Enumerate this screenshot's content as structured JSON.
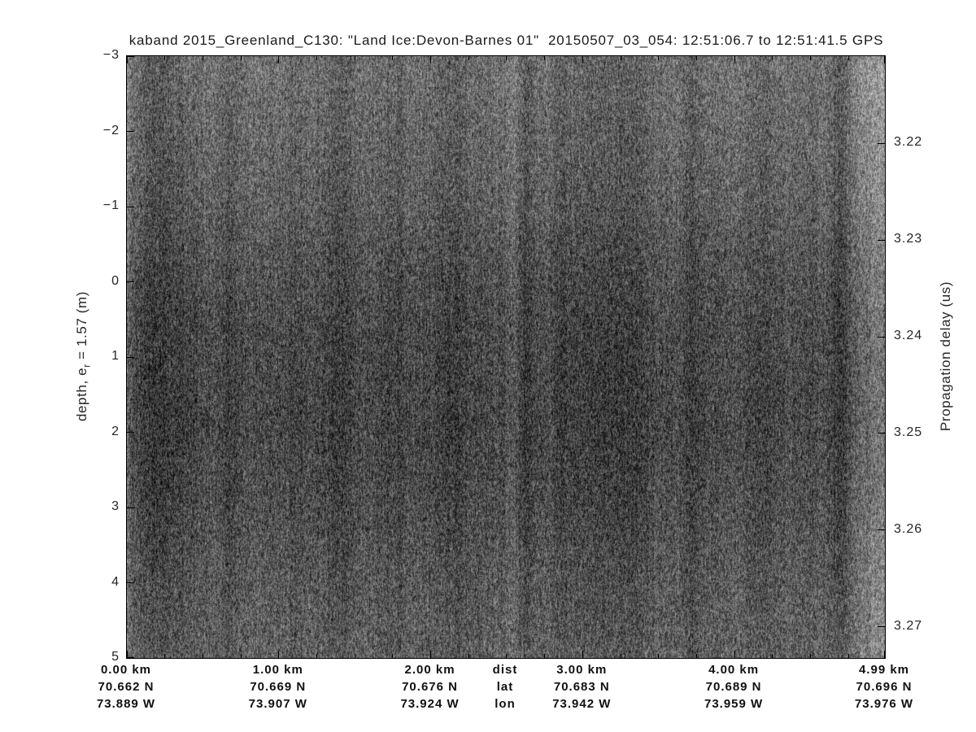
{
  "chart_data": {
    "type": "heatmap",
    "title": "kaband 2015_Greenland_C130: \"Land Ice:Devon-Barnes 01\"  20150507_03_054: 12:51:06.7 to 12:51:41.5 GPS",
    "colormap": "grayscale",
    "description": "Ka-band airborne radar echogram (radargram): dense grayscale speckle with faint dark vertical streaks, a broad darker horizontal band between roughly -1 m and 2.5 m depth, a dark slanted streak near the top right, and a brighter vertical band along the right edge.",
    "x_axis": {
      "header_rows": [
        "dist",
        "lat",
        "lon"
      ],
      "range_km": [
        0,
        4.99
      ],
      "columns": [
        {
          "pos_km": 0.0,
          "dist": "0.00 km",
          "lat": "70.662 N",
          "lon": "73.889 W"
        },
        {
          "pos_km": 1.0,
          "dist": "1.00 km",
          "lat": "70.669 N",
          "lon": "73.907 W"
        },
        {
          "pos_km": 2.0,
          "dist": "2.00 km",
          "lat": "70.676 N",
          "lon": "73.924 W"
        },
        {
          "pos_km": 3.0,
          "dist": "3.00 km",
          "lat": "70.683 N",
          "lon": "73.942 W"
        },
        {
          "pos_km": 4.0,
          "dist": "4.00 km",
          "lat": "70.689 N",
          "lon": "73.959 W"
        },
        {
          "pos_km": 4.99,
          "dist": "4.99 km",
          "lat": "70.696 N",
          "lon": "73.976 W"
        }
      ]
    },
    "y_left": {
      "label_pre": "depth, e",
      "label_sub": "r",
      "label_post": " = 1.57 (m)",
      "tick_labels": [
        "−3",
        "−2",
        "−1",
        "0",
        "1",
        "2",
        "3",
        "4",
        "5"
      ],
      "tick_values": [
        -3,
        -2,
        -1,
        0,
        1,
        2,
        3,
        4,
        5
      ],
      "range": [
        -3,
        5
      ]
    },
    "y_right": {
      "label": "Propagation delay (us)",
      "tick_labels": [
        "3.22",
        "3.23",
        "3.24",
        "3.25",
        "3.26",
        "3.27"
      ],
      "tick_values": [
        3.22,
        3.23,
        3.24,
        3.25,
        3.26,
        3.27
      ],
      "range": [
        3.211,
        3.2732
      ]
    }
  }
}
